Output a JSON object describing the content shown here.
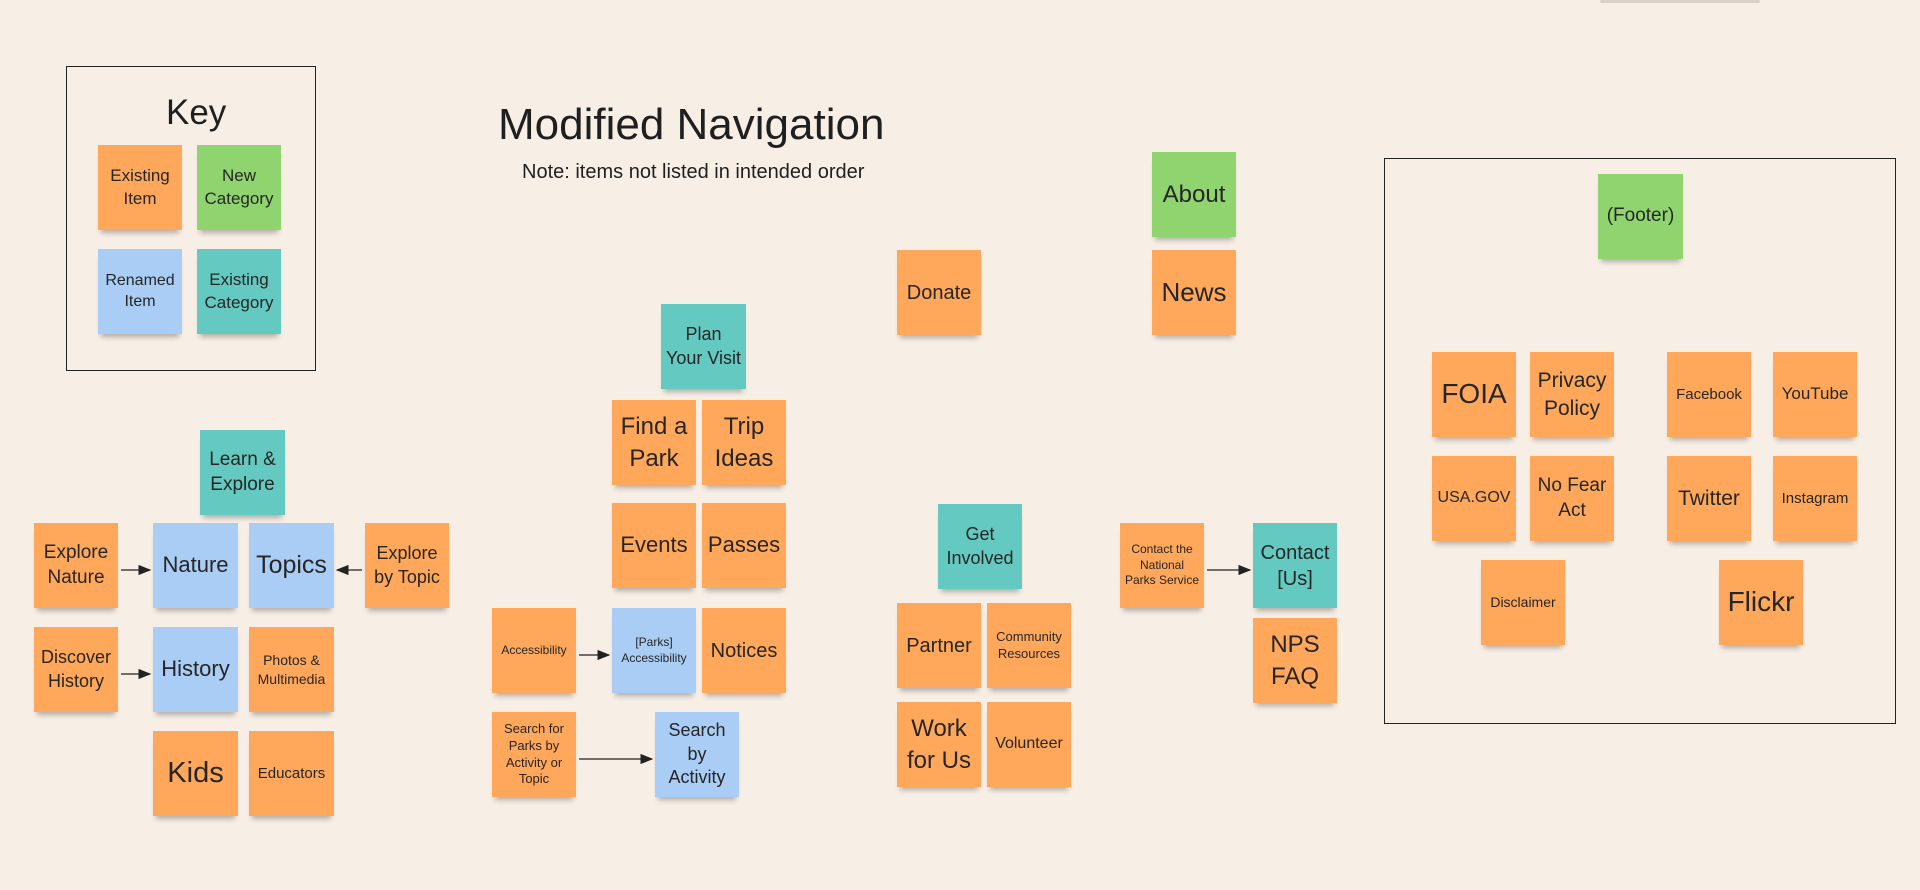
{
  "board": {
    "title": "Modified Navigation",
    "subtitle": "Note: items not listed in intended order"
  },
  "key": {
    "title": "Key",
    "items": [
      {
        "label": "Existing Item",
        "color": "#ffa75a"
      },
      {
        "label": "New Category",
        "color": "#8fd46e"
      },
      {
        "label": "Renamed Item",
        "color": "#aacdf6"
      },
      {
        "label": "Existing Category",
        "color": "#64c9c0"
      }
    ]
  },
  "learn_explore": {
    "category": "Learn & Explore",
    "items": [
      "Explore Nature",
      "Nature",
      "Topics",
      "Explore by Topic",
      "Discover History",
      "History",
      "Photos & Multimedia",
      "Kids",
      "Educators"
    ]
  },
  "plan_visit": {
    "category": "Plan Your Visit",
    "items": [
      "Find a Park",
      "Trip Ideas",
      "Events",
      "Passes",
      "Accessibility",
      "[Parks] Accessibility",
      "Notices",
      "Search for Parks by Activity or Topic",
      "Search by Activity"
    ]
  },
  "standalone": {
    "donate": "Donate",
    "about": "About",
    "news": "News"
  },
  "get_involved": {
    "category": "Get Involved",
    "items": [
      "Partner",
      "Community Resources",
      "Work for Us",
      "Volunteer"
    ]
  },
  "contact": {
    "items": [
      "Contact the National Parks Service",
      "Contact [Us]",
      "NPS FAQ"
    ]
  },
  "footer": {
    "category": "(Footer)",
    "items": [
      "FOIA",
      "Privacy Policy",
      "USA.GOV",
      "No Fear Act",
      "Disclaimer",
      "Facebook",
      "YouTube",
      "Twitter",
      "Instagram",
      "Flickr"
    ]
  }
}
